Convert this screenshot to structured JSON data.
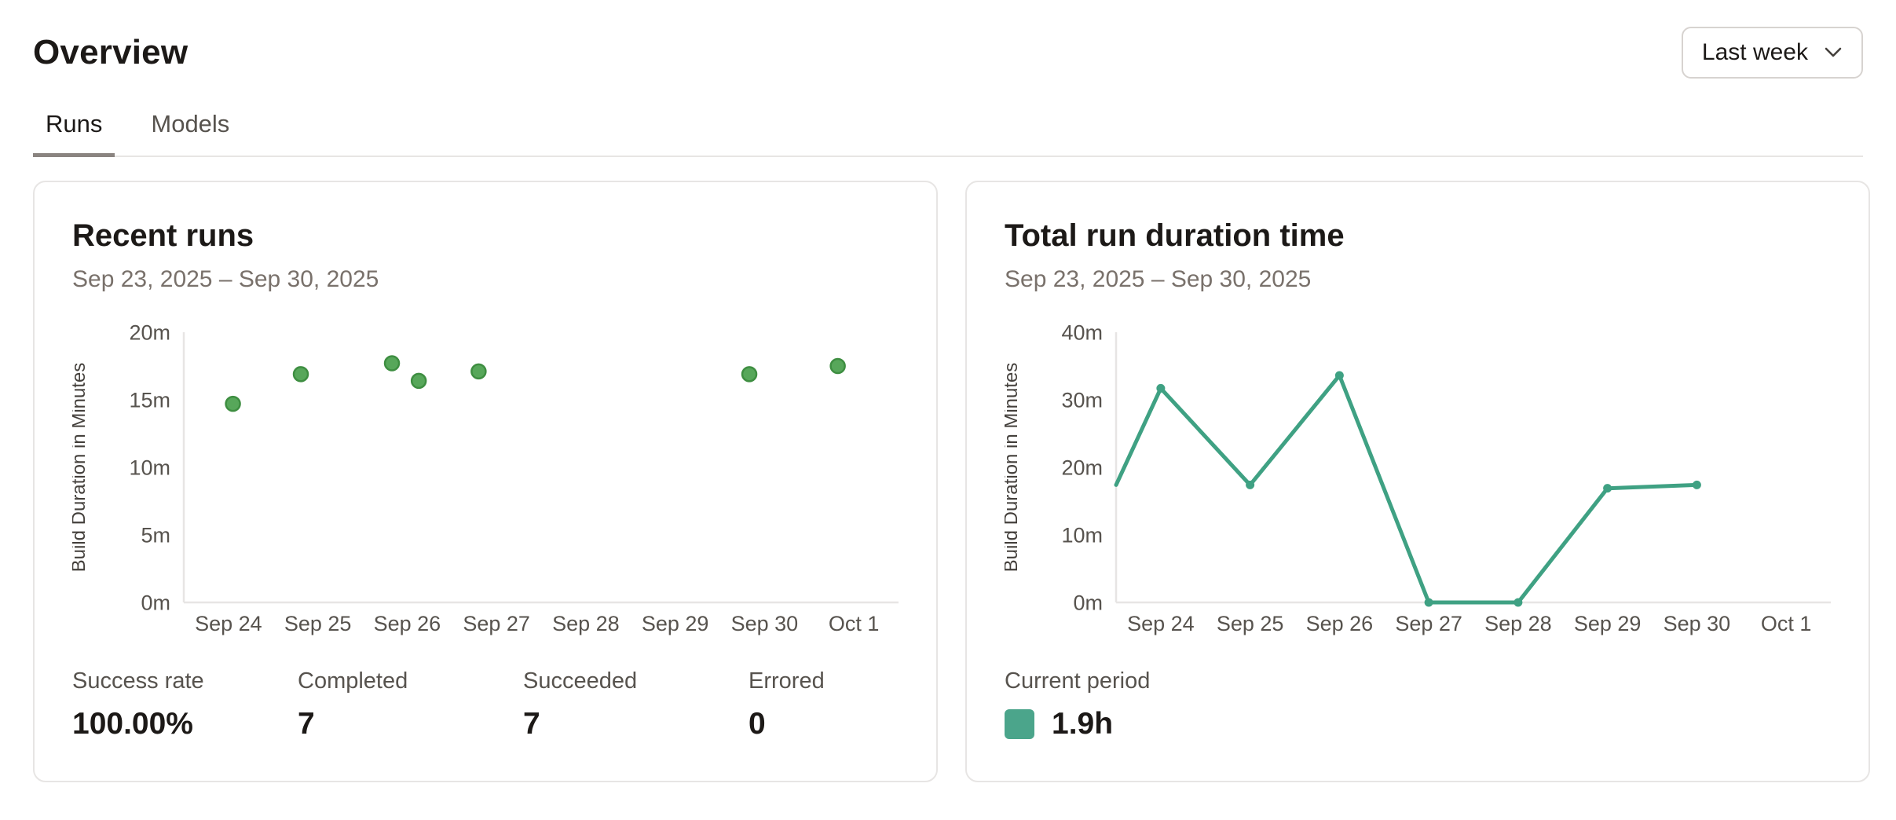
{
  "header": {
    "title": "Overview",
    "period_selector": {
      "value": "Last week",
      "icon": "chevron-down-icon"
    }
  },
  "tabs": [
    {
      "label": "Runs",
      "active": true
    },
    {
      "label": "Models",
      "active": false
    }
  ],
  "cards": {
    "recent_runs": {
      "title": "Recent runs",
      "date_range": "Sep 23, 2025 – Sep 30, 2025",
      "stats": [
        {
          "label": "Success rate",
          "value": "100.00%"
        },
        {
          "label": "Completed",
          "value": "7"
        },
        {
          "label": "Succeeded",
          "value": "7"
        },
        {
          "label": "Errored",
          "value": "0"
        }
      ]
    },
    "total_run_duration": {
      "title": "Total run duration time",
      "date_range": "Sep 23, 2025 – Sep 30, 2025",
      "legend": {
        "label": "Current period",
        "value": "1.9h",
        "swatch_color": "#4ba58b"
      }
    }
  },
  "colors": {
    "axis_line": "#e7e5e4",
    "tick_text": "#57534e",
    "axis_label_text": "#44403c",
    "scatter_fill": "#57a75a",
    "scatter_stroke": "#3e8e41",
    "line_teal": "#3fa183"
  },
  "chart_data": [
    {
      "id": "recent-runs",
      "type": "scatter",
      "title": "Recent runs",
      "ylabel": "Build Duration in Minutes",
      "ylim": [
        0,
        20
      ],
      "y_ticks": [
        "0m",
        "5m",
        "10m",
        "15m",
        "20m"
      ],
      "x_tick_labels": [
        "Sep 24",
        "Sep 25",
        "Sep 26",
        "Sep 27",
        "Sep 28",
        "Sep 29",
        "Sep 30",
        "Oct 1"
      ],
      "x_domain_days": [
        0.5,
        8.5
      ],
      "x_day_zero": "Sep 23",
      "grid": false,
      "points": [
        {
          "x": 1.05,
          "y": 14.7
        },
        {
          "x": 1.81,
          "y": 16.9
        },
        {
          "x": 2.83,
          "y": 17.7
        },
        {
          "x": 3.13,
          "y": 16.4
        },
        {
          "x": 3.8,
          "y": 17.1
        },
        {
          "x": 6.83,
          "y": 16.9
        },
        {
          "x": 7.82,
          "y": 17.5
        }
      ],
      "point_color": "#57a75a",
      "point_stroke": "#3e8e41"
    },
    {
      "id": "total-run-duration",
      "type": "line",
      "title": "Total run duration time",
      "ylabel": "Build Duration in Minutes",
      "ylim": [
        0,
        40
      ],
      "y_ticks": [
        "0m",
        "10m",
        "20m",
        "30m",
        "40m"
      ],
      "x_tick_labels": [
        "Sep 24",
        "Sep 25",
        "Sep 26",
        "Sep 27",
        "Sep 28",
        "Sep 29",
        "Sep 30",
        "Oct 1"
      ],
      "x_domain_days": [
        0.5,
        8.5
      ],
      "x_day_zero": "Sep 23",
      "grid": false,
      "points": [
        {
          "x": 0.5,
          "y": 17.4
        },
        {
          "x": 1,
          "y": 31.7
        },
        {
          "x": 2,
          "y": 17.4
        },
        {
          "x": 3,
          "y": 33.6
        },
        {
          "x": 4,
          "y": 0
        },
        {
          "x": 5,
          "y": 0
        },
        {
          "x": 6,
          "y": 16.9
        },
        {
          "x": 7,
          "y": 17.4
        }
      ],
      "line_color": "#3fa183"
    }
  ]
}
